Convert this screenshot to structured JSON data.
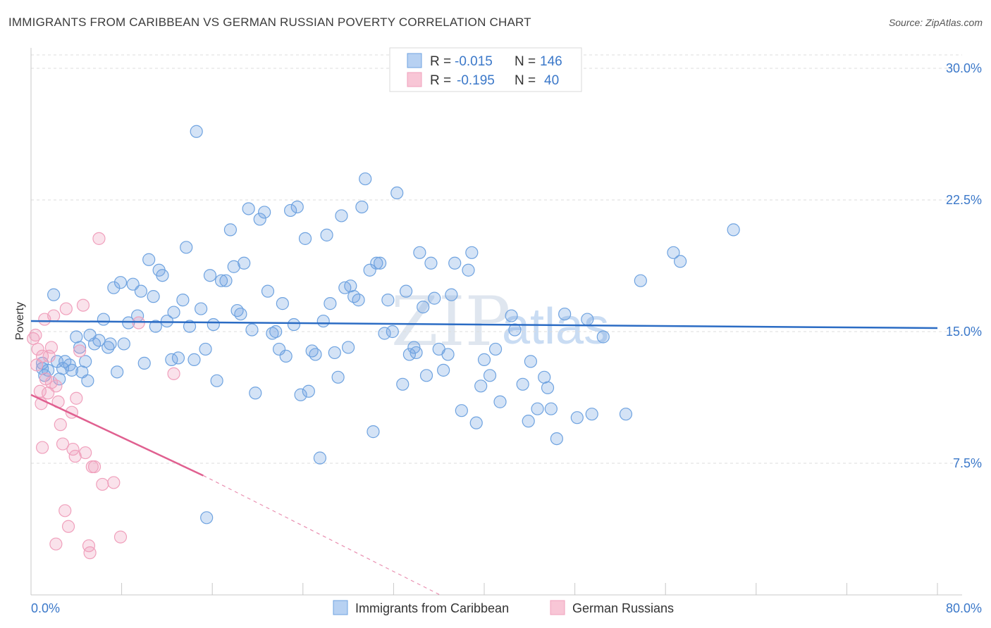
{
  "title": "IMMIGRANTS FROM CARIBBEAN VS GERMAN RUSSIAN POVERTY CORRELATION CHART",
  "source": "Source: ZipAtlas.com",
  "watermark": {
    "zip": "ZIP",
    "atlas": "atlas"
  },
  "legend": {
    "rows": [
      {
        "r_label": "R = ",
        "r_value": "-0.015",
        "n_label": "N = ",
        "n_value": "146"
      },
      {
        "r_label": "R = ",
        "r_value": "-0.195",
        "n_label": "N = ",
        "n_value": "40"
      }
    ]
  },
  "bottom_legend": {
    "items": [
      "Immigrants from Caribbean",
      "German Russians"
    ]
  },
  "chart_data": {
    "type": "scatter",
    "title": "IMMIGRANTS FROM CARIBBEAN VS GERMAN RUSSIAN POVERTY CORRELATION CHART",
    "xlabel": "",
    "ylabel": "Poverty",
    "xlim": [
      0,
      80
    ],
    "ylim": [
      0,
      31
    ],
    "x_tick_labels": [
      "0.0%",
      "80.0%"
    ],
    "y_ticks": [
      7.5,
      15.0,
      22.5,
      30.0
    ],
    "y_tick_labels": [
      "7.5%",
      "15.0%",
      "22.5%",
      "30.0%"
    ],
    "grid": "horizontal dashed",
    "colors": {
      "caribbean": "#6fa3e0",
      "caribbean_line": "#2b6cc4",
      "german_russian": "#f0a0bc",
      "german_russian_line": "#e06090"
    },
    "series": [
      {
        "name": "Immigrants from Caribbean",
        "trend": {
          "x": [
            0,
            80
          ],
          "y": [
            15.6,
            15.2
          ]
        },
        "points": [
          [
            1.0,
            13.2
          ],
          [
            1.0,
            12.9
          ],
          [
            1.2,
            12.5
          ],
          [
            1.5,
            12.8
          ],
          [
            2.0,
            17.1
          ],
          [
            2.3,
            13.3
          ],
          [
            2.5,
            12.3
          ],
          [
            2.8,
            12.9
          ],
          [
            3.0,
            13.3
          ],
          [
            3.4,
            13.1
          ],
          [
            3.6,
            12.8
          ],
          [
            4.0,
            14.7
          ],
          [
            4.3,
            14.1
          ],
          [
            4.5,
            12.7
          ],
          [
            4.8,
            13.3
          ],
          [
            5.0,
            12.2
          ],
          [
            5.2,
            14.8
          ],
          [
            5.6,
            14.3
          ],
          [
            6.0,
            14.5
          ],
          [
            6.4,
            15.7
          ],
          [
            6.8,
            14.1
          ],
          [
            7.0,
            14.3
          ],
          [
            7.3,
            17.5
          ],
          [
            7.6,
            12.7
          ],
          [
            7.9,
            17.8
          ],
          [
            8.2,
            14.3
          ],
          [
            8.6,
            15.5
          ],
          [
            9.0,
            17.7
          ],
          [
            9.4,
            15.9
          ],
          [
            9.7,
            17.3
          ],
          [
            10.0,
            13.2
          ],
          [
            10.4,
            19.1
          ],
          [
            10.8,
            17.0
          ],
          [
            11.0,
            15.3
          ],
          [
            11.3,
            18.5
          ],
          [
            11.6,
            18.2
          ],
          [
            12.0,
            15.6
          ],
          [
            12.4,
            13.4
          ],
          [
            12.6,
            16.1
          ],
          [
            13.0,
            13.5
          ],
          [
            13.4,
            16.8
          ],
          [
            13.7,
            19.8
          ],
          [
            14.0,
            15.3
          ],
          [
            14.4,
            13.4
          ],
          [
            14.6,
            26.4
          ],
          [
            15.0,
            16.3
          ],
          [
            15.4,
            14.0
          ],
          [
            15.8,
            18.2
          ],
          [
            16.1,
            15.4
          ],
          [
            16.4,
            12.2
          ],
          [
            16.8,
            17.9
          ],
          [
            17.2,
            17.9
          ],
          [
            17.6,
            20.8
          ],
          [
            17.9,
            18.7
          ],
          [
            18.2,
            16.2
          ],
          [
            18.5,
            16.0
          ],
          [
            18.8,
            18.9
          ],
          [
            19.2,
            22.0
          ],
          [
            19.5,
            15.1
          ],
          [
            19.8,
            11.5
          ],
          [
            20.2,
            21.4
          ],
          [
            20.6,
            21.8
          ],
          [
            20.9,
            17.3
          ],
          [
            21.3,
            14.9
          ],
          [
            21.6,
            15.0
          ],
          [
            21.9,
            14.0
          ],
          [
            22.2,
            16.6
          ],
          [
            22.5,
            13.6
          ],
          [
            22.9,
            21.9
          ],
          [
            23.2,
            15.4
          ],
          [
            23.5,
            22.1
          ],
          [
            23.8,
            11.4
          ],
          [
            24.2,
            20.3
          ],
          [
            24.5,
            11.6
          ],
          [
            24.8,
            13.9
          ],
          [
            25.1,
            13.7
          ],
          [
            25.5,
            7.8
          ],
          [
            25.8,
            15.6
          ],
          [
            26.1,
            20.5
          ],
          [
            26.4,
            16.6
          ],
          [
            26.8,
            13.8
          ],
          [
            27.1,
            12.4
          ],
          [
            27.4,
            21.6
          ],
          [
            27.7,
            17.5
          ],
          [
            28.0,
            14.1
          ],
          [
            28.2,
            17.6
          ],
          [
            28.5,
            17.0
          ],
          [
            28.9,
            16.8
          ],
          [
            29.2,
            22.1
          ],
          [
            29.5,
            23.7
          ],
          [
            29.9,
            18.5
          ],
          [
            30.2,
            9.3
          ],
          [
            30.5,
            18.9
          ],
          [
            30.8,
            18.9
          ],
          [
            31.2,
            14.9
          ],
          [
            31.5,
            16.8
          ],
          [
            31.9,
            15.0
          ],
          [
            32.3,
            22.9
          ],
          [
            32.8,
            12.0
          ],
          [
            33.1,
            17.3
          ],
          [
            33.4,
            13.7
          ],
          [
            33.8,
            14.1
          ],
          [
            34.0,
            13.8
          ],
          [
            34.3,
            19.5
          ],
          [
            34.6,
            16.4
          ],
          [
            34.9,
            12.5
          ],
          [
            35.3,
            18.9
          ],
          [
            35.6,
            16.9
          ],
          [
            36.0,
            14.0
          ],
          [
            36.4,
            12.8
          ],
          [
            36.8,
            13.7
          ],
          [
            37.1,
            17.1
          ],
          [
            37.4,
            18.9
          ],
          [
            38.0,
            10.5
          ],
          [
            38.6,
            18.5
          ],
          [
            38.9,
            19.5
          ],
          [
            39.3,
            9.8
          ],
          [
            39.7,
            11.9
          ],
          [
            40.0,
            13.4
          ],
          [
            40.5,
            12.5
          ],
          [
            41.0,
            14.0
          ],
          [
            41.4,
            11.0
          ],
          [
            42.4,
            15.9
          ],
          [
            42.7,
            15.1
          ],
          [
            43.4,
            12.0
          ],
          [
            43.9,
            9.9
          ],
          [
            44.1,
            13.3
          ],
          [
            44.7,
            10.6
          ],
          [
            45.3,
            12.4
          ],
          [
            45.6,
            11.8
          ],
          [
            45.9,
            10.6
          ],
          [
            46.4,
            8.9
          ],
          [
            47.1,
            16.0
          ],
          [
            48.2,
            10.1
          ],
          [
            49.1,
            15.7
          ],
          [
            49.5,
            10.3
          ],
          [
            50.5,
            14.7
          ],
          [
            52.5,
            10.3
          ],
          [
            53.8,
            17.9
          ],
          [
            56.7,
            19.5
          ],
          [
            57.3,
            19.0
          ],
          [
            62.0,
            20.8
          ],
          [
            15.5,
            4.4
          ]
        ]
      },
      {
        "name": "German Russians",
        "trend": {
          "x": [
            0,
            15.2
          ],
          "y": [
            11.4,
            6.8
          ],
          "extended_to": [
            36.1,
            0
          ]
        },
        "points": [
          [
            0.2,
            14.6
          ],
          [
            0.4,
            14.8
          ],
          [
            0.5,
            13.1
          ],
          [
            0.6,
            14.0
          ],
          [
            0.8,
            11.6
          ],
          [
            0.9,
            10.9
          ],
          [
            1.0,
            13.6
          ],
          [
            1.0,
            8.4
          ],
          [
            1.2,
            15.7
          ],
          [
            1.3,
            12.3
          ],
          [
            1.5,
            11.5
          ],
          [
            1.6,
            13.6
          ],
          [
            1.8,
            14.1
          ],
          [
            1.8,
            12.1
          ],
          [
            2.0,
            15.9
          ],
          [
            2.2,
            11.9
          ],
          [
            2.4,
            11.0
          ],
          [
            2.6,
            9.7
          ],
          [
            2.8,
            8.6
          ],
          [
            3.0,
            4.8
          ],
          [
            3.1,
            16.3
          ],
          [
            3.3,
            3.9
          ],
          [
            3.6,
            10.4
          ],
          [
            3.7,
            8.3
          ],
          [
            3.9,
            7.9
          ],
          [
            4.0,
            11.2
          ],
          [
            4.3,
            13.9
          ],
          [
            4.6,
            16.5
          ],
          [
            4.8,
            8.1
          ],
          [
            5.1,
            2.8
          ],
          [
            5.2,
            2.4
          ],
          [
            5.4,
            7.3
          ],
          [
            5.6,
            7.3
          ],
          [
            6.0,
            20.3
          ],
          [
            6.3,
            6.3
          ],
          [
            7.3,
            6.4
          ],
          [
            7.9,
            3.3
          ],
          [
            9.5,
            15.5
          ],
          [
            12.6,
            12.6
          ],
          [
            2.2,
            2.9
          ]
        ]
      }
    ]
  }
}
